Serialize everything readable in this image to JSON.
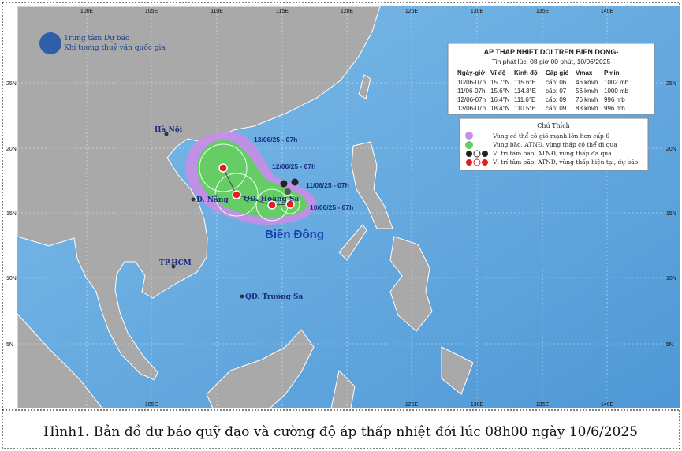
{
  "logo": {
    "line1": "Trung tâm Dự báo",
    "line2": "Khí tượng thuỷ văn quốc gia"
  },
  "axes": {
    "top": [
      "100E",
      "105E",
      "110E",
      "115E",
      "120E",
      "125E",
      "130E",
      "135E",
      "140E"
    ],
    "bottom": [
      "105E",
      "125E",
      "130E",
      "135E",
      "140E"
    ],
    "left": [
      "25N",
      "20N",
      "15N",
      "10N",
      "5N"
    ],
    "right": [
      "25N",
      "20N",
      "15N",
      "10N",
      "5N"
    ]
  },
  "info_box": {
    "title": "AP THAP NHIET DOI TREN BIEN DONG-",
    "issued": "Tin phát lúc: 08 giờ 00 phút, 10/06/2025",
    "headers": [
      "Ngày-giờ",
      "Vĩ độ",
      "Kinh độ",
      "Cấp gió",
      "Vmax",
      "Pmin"
    ],
    "rows": [
      [
        "10/06-07h",
        "15.7°N",
        "115.6°E",
        "cấp: 06",
        "46 km/h",
        "1002 mb"
      ],
      [
        "11/06-07h",
        "15.6°N",
        "114.3°E",
        "cấp: 07",
        "56 km/h",
        "1000 mb"
      ],
      [
        "12/06-07h",
        "16.4°N",
        "111.6°E",
        "cấp: 09",
        "76 km/h",
        "996 mb"
      ],
      [
        "13/06-07h",
        "18.4°N",
        "110.5°E",
        "cấp: 09",
        "83 km/h",
        "996 mb"
      ]
    ]
  },
  "legend": {
    "title": "Chú Thích",
    "items": [
      "Vùng có thể có gió mạnh lớn hơn cấp 6",
      "Vùng bão, ATNĐ, vùng thấp có thể đi qua",
      "Vị trí tâm bão, ATNĐ, vùng thấp đã qua",
      "Vị trí tâm bão, ATNĐ, vùng thấp hiện tại, dự báo"
    ]
  },
  "places": [
    "Hà Nội",
    "Đ. Nẵng",
    "TP.HCM",
    "QĐ. Hoàng Sa",
    "QĐ. Trường Sa"
  ],
  "forecast_labels": [
    "13/06/25 - 07h",
    "12/06/25 - 07h",
    "11/06/25 - 07h",
    "10/06/25 - 07h"
  ],
  "sea_label": "Biển Đông",
  "caption": "Hình1. Bản đồ dự báo quỹ đạo và cường độ áp thấp nhiệt đới lúc 08h00 ngày 10/6/2025"
}
